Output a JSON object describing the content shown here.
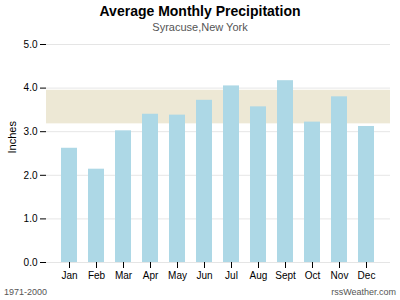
{
  "chart_data": {
    "type": "bar",
    "title": "Average Monthly Precipitation",
    "subtitle": "Syracuse,New York",
    "ylabel": "Inches",
    "categories": [
      "Jan",
      "Feb",
      "Mar",
      "Apr",
      "May",
      "Jun",
      "Jul",
      "Aug",
      "Sept",
      "Oct",
      "Nov",
      "Dec"
    ],
    "values": [
      2.62,
      2.14,
      3.02,
      3.4,
      3.38,
      3.72,
      4.05,
      3.57,
      4.17,
      3.22,
      3.8,
      3.12
    ],
    "color": "#ADD8E6",
    "ylim": [
      0.0,
      5.0
    ],
    "yticks": [
      {
        "value": 0.0,
        "label": "0.0"
      },
      {
        "value": 1.0,
        "label": "1.0"
      },
      {
        "value": 2.0,
        "label": "2.0"
      },
      {
        "value": 3.0,
        "label": "3.0"
      },
      {
        "value": 4.0,
        "label": "4.0"
      },
      {
        "value": 5.0,
        "label": "5.0"
      }
    ],
    "grid": true,
    "band": {
      "range": [
        3.18,
        3.95
      ],
      "color": "#EDE8D5"
    },
    "footnotes": [
      "1971-2000",
      "rssWeather.com"
    ]
  }
}
